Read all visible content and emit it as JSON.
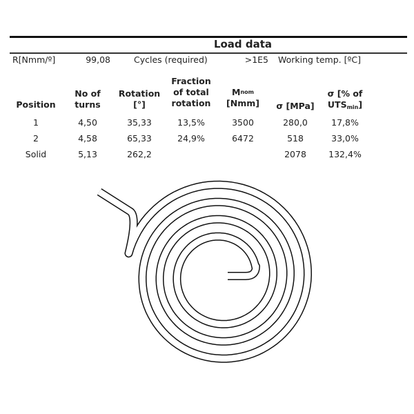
{
  "title": "Load data",
  "info": {
    "r_label": "R[Nmm/º]",
    "r_value": "99,08",
    "cycles_label": "Cycles (required)",
    "cycles_value": ">1E5",
    "temp_label": "Working temp. [ºC]"
  },
  "table": {
    "headers": {
      "position": "Position",
      "turns_1": "No of",
      "turns_2": "turns",
      "rotation_1": "Rotation",
      "rotation_2": "[°]",
      "fraction_1": "Fraction",
      "fraction_2": "of total",
      "fraction_3": "rotation",
      "mnom_main": "M",
      "mnom_sub": "nom",
      "mnom_unit": "[Nmm]",
      "sigma_mpa": "σ [MPa]",
      "sigma_pct_1": "σ [% of",
      "sigma_pct_2": "UTS",
      "sigma_pct_sub": "min",
      "sigma_pct_close": "]"
    },
    "rows": [
      {
        "position": "1",
        "turns": "4,50",
        "rotation": "35,33",
        "fraction": "13,5%",
        "mnom": "3500",
        "sigma": "280,0",
        "sigma_pct": "17,8%"
      },
      {
        "position": "2",
        "turns": "4,58",
        "rotation": "65,33",
        "fraction": "24,9%",
        "mnom": "6472",
        "sigma": "518",
        "sigma_pct": "33,0%"
      },
      {
        "position": "Solid",
        "turns": "5,13",
        "rotation": "262,2",
        "fraction": "",
        "mnom": "",
        "sigma": "2078",
        "sigma_pct": "132,4%"
      }
    ]
  },
  "figure": {
    "type": "spiral-spring-drawing",
    "stroke_color": "#111111"
  }
}
